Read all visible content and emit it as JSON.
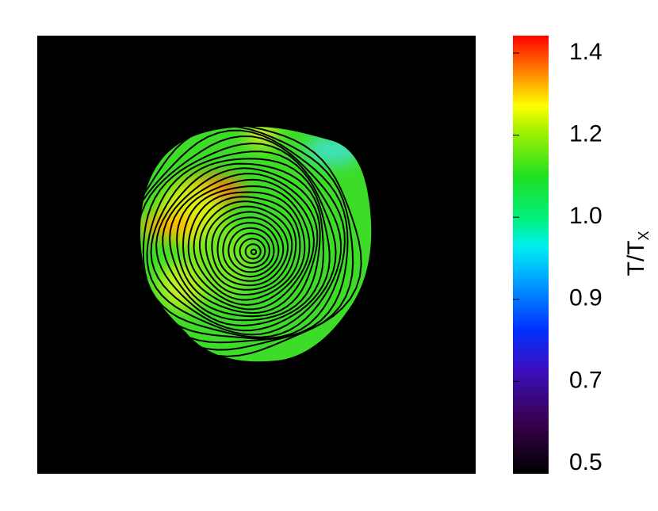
{
  "chart_data": {
    "type": "colormap",
    "colorbar_label": "T/T",
    "colorbar_label_sub": "X",
    "colorbar_ticks": [
      0.5,
      0.7,
      0.9,
      {
        "value": 1,
        "label": "1.0"
      },
      1.2,
      1.4
    ]
  }
}
